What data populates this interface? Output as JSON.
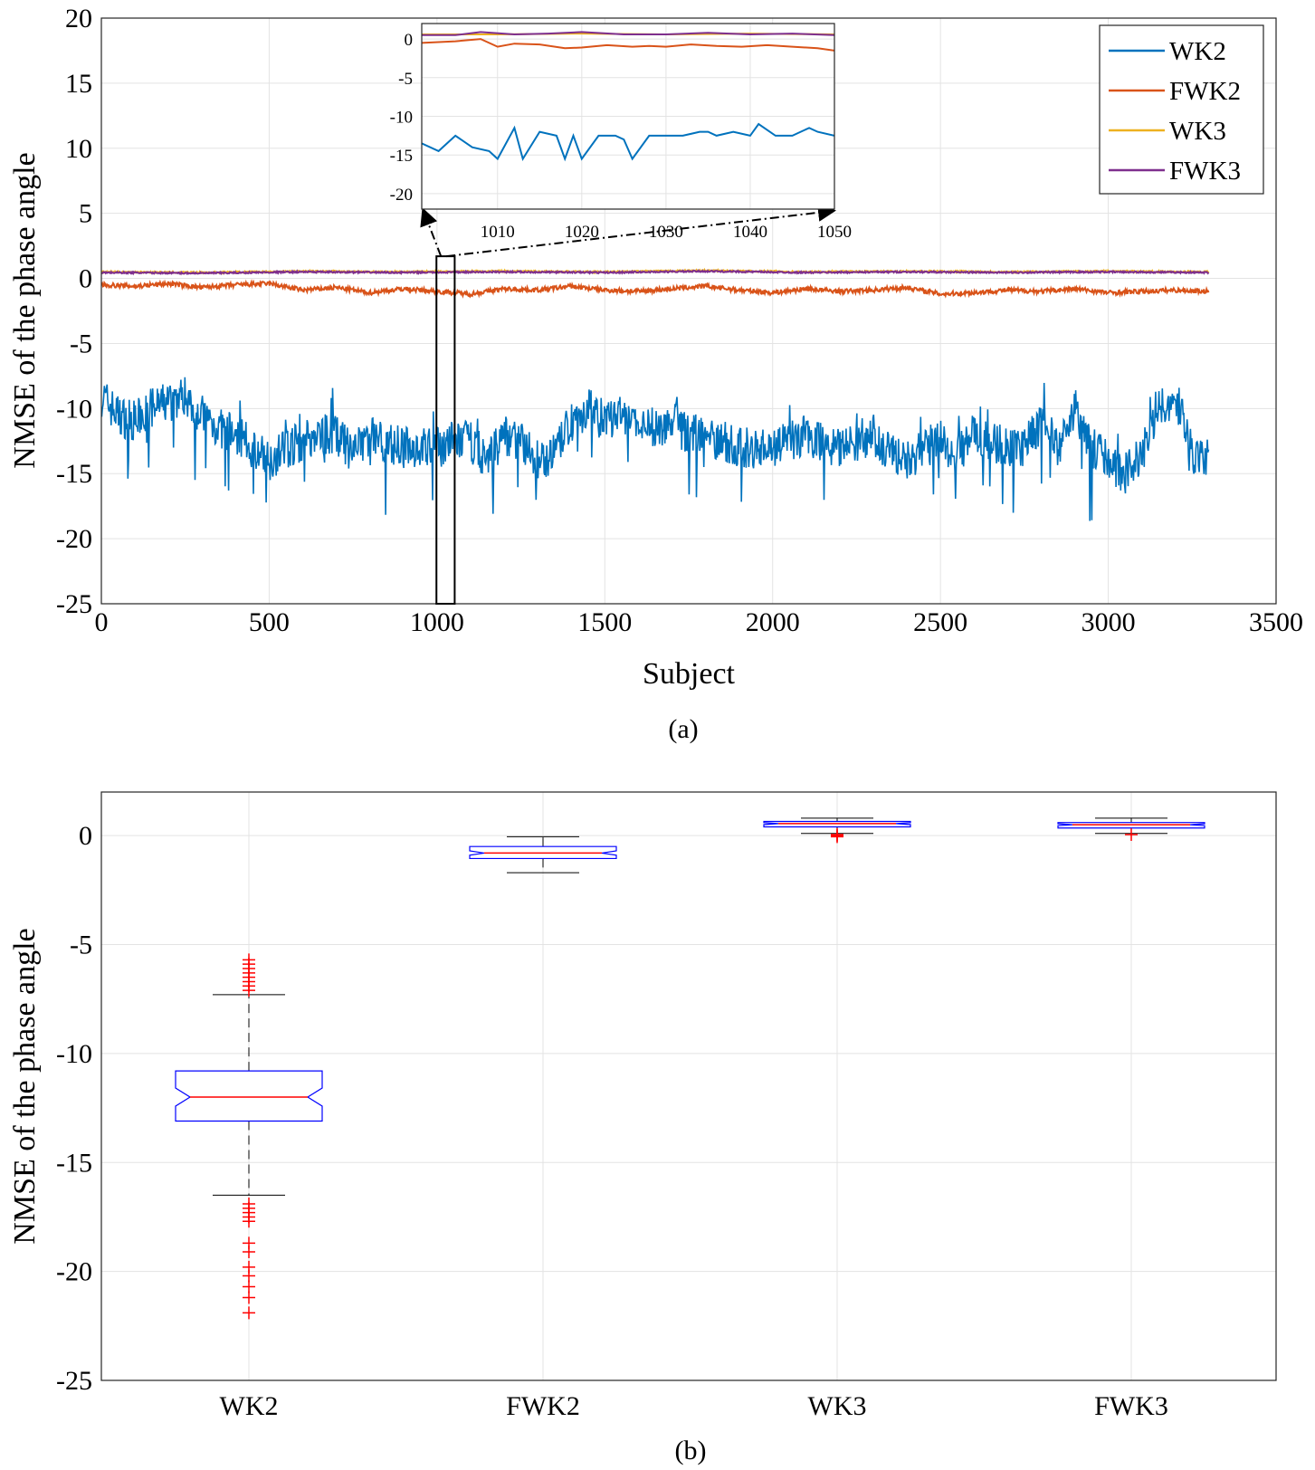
{
  "chart_data": [
    {
      "type": "line",
      "caption": "(a)",
      "xlabel": "Subject",
      "ylabel": "NMSE of the phase angle",
      "xlim": [
        0,
        3500
      ],
      "ylim": [
        -25,
        20
      ],
      "xticks": [
        0,
        500,
        1000,
        1500,
        2000,
        2500,
        3000,
        3500
      ],
      "yticks": [
        20,
        15,
        10,
        5,
        0,
        -5,
        -10,
        -15,
        -20,
        -25
      ],
      "grid": true,
      "legend": {
        "position": "top-right",
        "entries": [
          "WK2",
          "FWK2",
          "WK3",
          "FWK3"
        ]
      },
      "n_subjects": 3300,
      "series": [
        {
          "name": "WK2",
          "color": "#0072BD",
          "x": [
            0,
            50,
            100,
            150,
            200,
            250,
            300,
            350,
            400,
            450,
            500,
            550,
            600,
            650,
            700,
            750,
            800,
            850,
            900,
            950,
            1000,
            1050,
            1100,
            1150,
            1200,
            1250,
            1300,
            1350,
            1400,
            1450,
            1500,
            1550,
            1600,
            1650,
            1700,
            1750,
            1800,
            1850,
            1900,
            1950,
            2000,
            2050,
            2100,
            2150,
            2200,
            2250,
            2300,
            2350,
            2400,
            2450,
            2500,
            2550,
            2600,
            2650,
            2700,
            2750,
            2800,
            2850,
            2900,
            2950,
            3000,
            3050,
            3100,
            3150,
            3200,
            3250,
            3300
          ],
          "values": [
            -9,
            -10.5,
            -11,
            -10,
            -9.5,
            -9,
            -10.5,
            -11.5,
            -12,
            -13,
            -14,
            -13,
            -12.5,
            -12,
            -12,
            -13.5,
            -12,
            -12.5,
            -13,
            -13,
            -13,
            -12.5,
            -12.5,
            -14,
            -12,
            -12.5,
            -14,
            -13.5,
            -11,
            -10,
            -11,
            -10.5,
            -11.5,
            -11.5,
            -11,
            -12,
            -12,
            -12.5,
            -13,
            -13,
            -13,
            -12.5,
            -12,
            -12.5,
            -13,
            -12.5,
            -12,
            -13.5,
            -14,
            -13,
            -12.5,
            -13.5,
            -12,
            -12.5,
            -13,
            -13,
            -11,
            -13,
            -10,
            -13,
            -14,
            -15,
            -13.5,
            -10,
            -9,
            -13.5,
            -14
          ]
        },
        {
          "name": "FWK2",
          "color": "#D95319",
          "x": [
            0,
            100,
            200,
            300,
            400,
            500,
            600,
            700,
            800,
            900,
            1000,
            1100,
            1200,
            1300,
            1400,
            1500,
            1600,
            1700,
            1800,
            1900,
            2000,
            2100,
            2200,
            2300,
            2400,
            2500,
            2600,
            2700,
            2800,
            2900,
            3000,
            3100,
            3200,
            3300
          ],
          "values": [
            -0.5,
            -0.6,
            -0.4,
            -0.7,
            -0.5,
            -0.4,
            -0.9,
            -0.7,
            -1.1,
            -0.8,
            -1.0,
            -1.2,
            -0.8,
            -0.9,
            -0.6,
            -0.9,
            -1.0,
            -0.8,
            -0.6,
            -0.9,
            -1.1,
            -0.8,
            -1.0,
            -0.9,
            -0.7,
            -1.2,
            -1.1,
            -0.9,
            -1.0,
            -0.8,
            -1.1,
            -1.0,
            -0.9,
            -1.0
          ]
        },
        {
          "name": "WK3",
          "color": "#EDB120",
          "x": [
            0,
            300,
            600,
            900,
            1200,
            1500,
            1800,
            2100,
            2400,
            2700,
            3000,
            3300
          ],
          "values": [
            0.5,
            0.45,
            0.55,
            0.5,
            0.55,
            0.5,
            0.6,
            0.5,
            0.55,
            0.5,
            0.55,
            0.5
          ]
        },
        {
          "name": "FWK3",
          "color": "#7E2F8E",
          "x": [
            0,
            300,
            600,
            900,
            1200,
            1500,
            1800,
            2100,
            2400,
            2700,
            3000,
            3300
          ],
          "values": [
            0.45,
            0.4,
            0.5,
            0.45,
            0.5,
            0.45,
            0.55,
            0.45,
            0.5,
            0.45,
            0.5,
            0.45
          ]
        }
      ],
      "inset": {
        "xlim": [
          1001,
          1050
        ],
        "ylim": [
          -22,
          2
        ],
        "xticks": [
          1010,
          1020,
          1030,
          1040,
          1050
        ],
        "yticks": [
          0,
          -5,
          -10,
          -15,
          -20
        ],
        "highlight_x": [
          1001,
          1050
        ],
        "series": [
          {
            "name": "WK2",
            "x": [
              1001,
              1003,
              1005,
              1007,
              1009,
              1010,
              1012,
              1013,
              1015,
              1017,
              1018,
              1019,
              1020,
              1022,
              1024,
              1025,
              1026,
              1028,
              1030,
              1032,
              1034,
              1035,
              1036,
              1038,
              1040,
              1041,
              1043,
              1045,
              1047,
              1048,
              1050
            ],
            "values": [
              -13.5,
              -14.5,
              -12.5,
              -14,
              -14.5,
              -15.5,
              -11.5,
              -15.5,
              -12,
              -12.5,
              -15.5,
              -12.5,
              -15.5,
              -12.5,
              -12.5,
              -13,
              -15.5,
              -12.5,
              -12.5,
              -12.5,
              -12,
              -12,
              -12.5,
              -12,
              -12.5,
              -11,
              -12.5,
              -12.5,
              -11.5,
              -12,
              -12.5
            ]
          },
          {
            "name": "FWK2",
            "x": [
              1001,
              1005,
              1008,
              1010,
              1012,
              1015,
              1018,
              1020,
              1023,
              1026,
              1028,
              1030,
              1033,
              1036,
              1039,
              1042,
              1045,
              1048,
              1050
            ],
            "values": [
              -0.5,
              -0.3,
              0.0,
              -1.0,
              -0.6,
              -0.7,
              -1.2,
              -1.1,
              -0.8,
              -1.0,
              -0.9,
              -1.0,
              -0.7,
              -0.9,
              -1.0,
              -0.8,
              -1.0,
              -1.2,
              -1.5
            ]
          },
          {
            "name": "WK3",
            "x": [
              1001,
              1010,
              1020,
              1030,
              1040,
              1050
            ],
            "values": [
              0.6,
              0.6,
              0.7,
              0.6,
              0.7,
              0.6
            ]
          },
          {
            "name": "FWK3",
            "x": [
              1001,
              1005,
              1008,
              1012,
              1016,
              1020,
              1025,
              1030,
              1035,
              1040,
              1045,
              1050
            ],
            "values": [
              0.5,
              0.5,
              0.9,
              0.6,
              0.7,
              0.9,
              0.6,
              0.6,
              0.8,
              0.6,
              0.7,
              0.5
            ]
          }
        ]
      }
    },
    {
      "type": "box",
      "caption": "(b)",
      "xlabel": "",
      "ylabel": "NMSE of the phase angle",
      "ylim": [
        -25,
        2
      ],
      "yticks": [
        0,
        -5,
        -10,
        -15,
        -20,
        -25
      ],
      "grid": true,
      "categories": [
        "WK2",
        "FWK2",
        "WK3",
        "FWK3"
      ],
      "boxes": [
        {
          "name": "WK2",
          "q1": -13.1,
          "median": -12.0,
          "q3": -10.8,
          "whisker_low": -16.5,
          "whisker_high": -7.3,
          "outliers": [
            -5.7,
            -5.9,
            -6.1,
            -6.3,
            -6.5,
            -6.7,
            -6.9,
            -7.1,
            -16.9,
            -17.1,
            -17.3,
            -17.5,
            -17.7,
            -18.7,
            -19.1,
            -19.8,
            -20.2,
            -20.7,
            -21.2,
            -21.9
          ]
        },
        {
          "name": "FWK2",
          "q1": -1.05,
          "median": -0.8,
          "q3": -0.5,
          "whisker_low": -1.7,
          "whisker_high": -0.05,
          "outliers": []
        },
        {
          "name": "WK3",
          "q1": 0.4,
          "median": 0.55,
          "q3": 0.65,
          "whisker_low": 0.1,
          "whisker_high": 0.8,
          "outliers": [
            0.05,
            0.0,
            -0.05
          ]
        },
        {
          "name": "FWK3",
          "q1": 0.35,
          "median": 0.5,
          "q3": 0.6,
          "whisker_low": 0.1,
          "whisker_high": 0.8,
          "outliers": [
            0.05
          ]
        }
      ]
    }
  ]
}
